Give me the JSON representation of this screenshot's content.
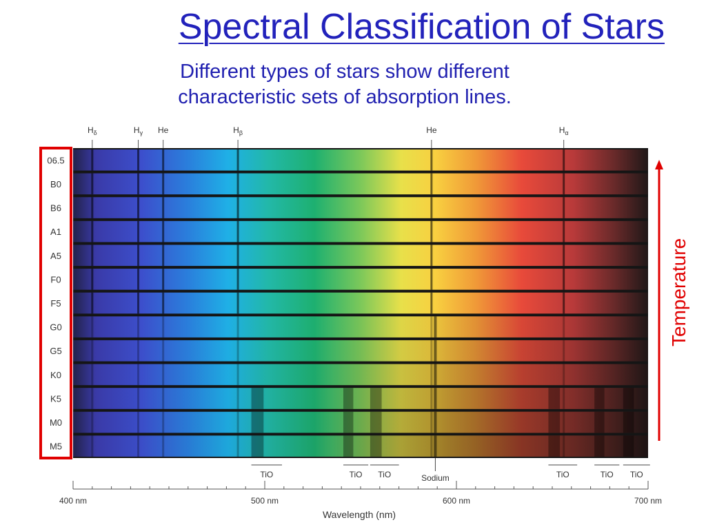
{
  "title": "Spectral Classification of Stars",
  "subtitle_line1": "Different types of stars show different",
  "subtitle_line2": "characteristic sets of absorption lines.",
  "spectral_types": [
    "06.5",
    "B0",
    "B6",
    "A1",
    "A5",
    "F0",
    "F5",
    "G0",
    "G5",
    "K0",
    "K5",
    "M0",
    "M5"
  ],
  "top_lines": [
    {
      "base": "H",
      "sub": "δ",
      "wavelength": 410
    },
    {
      "base": "H",
      "sub": "γ",
      "wavelength": 434
    },
    {
      "base": "He",
      "sub": "",
      "wavelength": 447
    },
    {
      "base": "H",
      "sub": "β",
      "wavelength": 486
    },
    {
      "base": "He",
      "sub": "",
      "wavelength": 587
    },
    {
      "base": "H",
      "sub": "α",
      "wavelength": 656
    }
  ],
  "bottom_bands": [
    {
      "label": "TiO",
      "from": 493,
      "to": 509
    },
    {
      "label": "TiO",
      "from": 541,
      "to": 554
    },
    {
      "label": "TiO",
      "from": 555,
      "to": 570
    },
    {
      "label": "TiO",
      "from": 648,
      "to": 663
    },
    {
      "label": "TiO",
      "from": 672,
      "to": 685
    },
    {
      "label": "TiO",
      "from": 687,
      "to": 701
    }
  ],
  "sodium": {
    "label": "Sodium",
    "wavelength": 589
  },
  "axis": {
    "min": 400,
    "max": 700,
    "tick_labels": [
      {
        "value": 400,
        "text": "400 nm"
      },
      {
        "value": 500,
        "text": "500 nm"
      },
      {
        "value": 600,
        "text": "600 nm"
      },
      {
        "value": 700,
        "text": "700 nm"
      }
    ],
    "xlabel": "Wavelength (nm)"
  },
  "temperature_label": "Temperature",
  "colors": {
    "title": "#2222bb",
    "highlight": "#e00000"
  }
}
